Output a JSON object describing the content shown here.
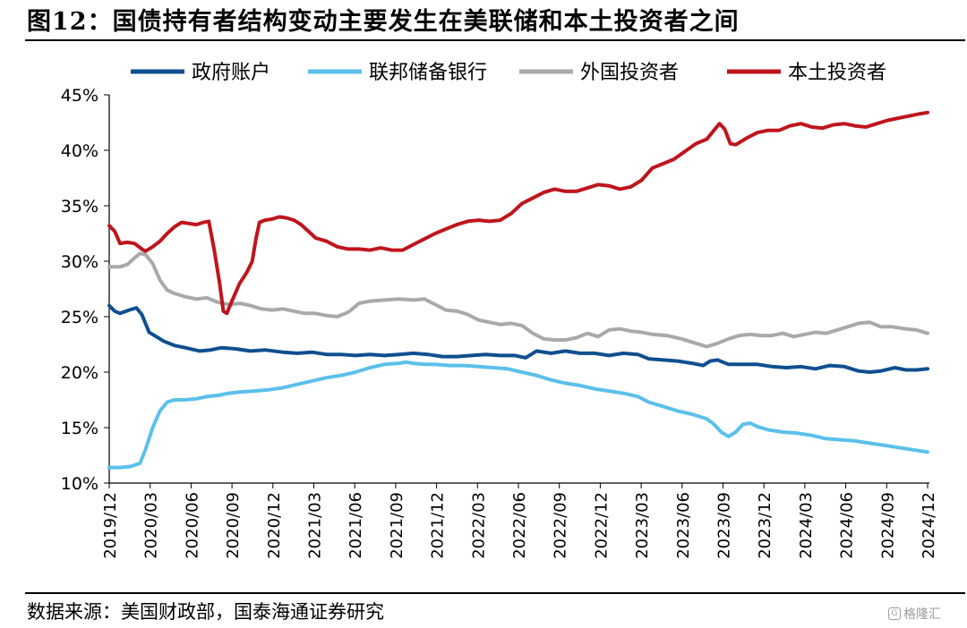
{
  "figure": {
    "title": "图12：国债持有者结构变动主要发生在美联储和本土投资者之间",
    "source": "数据来源：美国财政部，国泰海通证券研究",
    "watermark": "格隆汇"
  },
  "chart_data": {
    "type": "line",
    "ylim": [
      10,
      45
    ],
    "y_ticks": [
      "10%",
      "15%",
      "20%",
      "25%",
      "30%",
      "35%",
      "40%",
      "45%"
    ],
    "x_tick_labels": [
      "2019/12",
      "2020/03",
      "2020/06",
      "2020/09",
      "2020/12",
      "2021/03",
      "2021/06",
      "2021/09",
      "2021/12",
      "2022/03",
      "2022/06",
      "2022/09",
      "2022/12",
      "2023/03",
      "2023/06",
      "2023/09",
      "2023/12",
      "2024/03",
      "2024/06",
      "2024/09",
      "2024/12"
    ],
    "legend_position": "top",
    "grid": false,
    "series": [
      {
        "name": "政府账户",
        "color": "#0f4f8f",
        "points": [
          [
            0,
            26.0
          ],
          [
            0.15,
            25.5
          ],
          [
            0.3,
            25.3
          ],
          [
            0.55,
            25.6
          ],
          [
            0.75,
            25.8
          ],
          [
            0.9,
            25.2
          ],
          [
            1.1,
            23.6
          ],
          [
            1.3,
            23.2
          ],
          [
            1.5,
            22.8
          ],
          [
            1.8,
            22.4
          ],
          [
            2.1,
            22.2
          ],
          [
            2.5,
            21.9
          ],
          [
            2.8,
            22.0
          ],
          [
            3.1,
            22.2
          ],
          [
            3.5,
            22.1
          ],
          [
            3.9,
            21.9
          ],
          [
            4.3,
            22.0
          ],
          [
            4.8,
            21.8
          ],
          [
            5.2,
            21.7
          ],
          [
            5.6,
            21.8
          ],
          [
            6.0,
            21.6
          ],
          [
            6.4,
            21.6
          ],
          [
            6.8,
            21.5
          ],
          [
            7.2,
            21.6
          ],
          [
            7.6,
            21.5
          ],
          [
            8.0,
            21.6
          ],
          [
            8.4,
            21.7
          ],
          [
            8.8,
            21.6
          ],
          [
            9.2,
            21.4
          ],
          [
            9.6,
            21.4
          ],
          [
            10.0,
            21.5
          ],
          [
            10.4,
            21.6
          ],
          [
            10.8,
            21.5
          ],
          [
            11.2,
            21.5
          ],
          [
            11.5,
            21.3
          ],
          [
            11.8,
            21.9
          ],
          [
            12.2,
            21.7
          ],
          [
            12.6,
            21.9
          ],
          [
            13.0,
            21.7
          ],
          [
            13.4,
            21.7
          ],
          [
            13.8,
            21.5
          ],
          [
            14.2,
            21.7
          ],
          [
            14.6,
            21.6
          ],
          [
            14.9,
            21.2
          ],
          [
            15.3,
            21.1
          ],
          [
            15.7,
            21.0
          ],
          [
            16.1,
            20.8
          ],
          [
            16.4,
            20.6
          ],
          [
            16.6,
            21.0
          ],
          [
            16.8,
            21.1
          ],
          [
            17.1,
            20.7
          ],
          [
            17.5,
            20.7
          ],
          [
            17.9,
            20.7
          ],
          [
            18.3,
            20.5
          ],
          [
            18.7,
            20.4
          ],
          [
            19.1,
            20.5
          ],
          [
            19.5,
            20.3
          ],
          [
            19.9,
            20.6
          ],
          [
            20.3,
            20.5
          ],
          [
            20.7,
            20.1
          ],
          [
            21.0,
            20.0
          ],
          [
            21.3,
            20.1
          ],
          [
            21.7,
            20.4
          ],
          [
            22.0,
            20.2
          ],
          [
            22.3,
            20.2
          ],
          [
            22.6,
            20.3
          ]
        ]
      },
      {
        "name": "联邦储备银行",
        "color": "#5bc0eb",
        "points": [
          [
            0,
            11.4
          ],
          [
            0.3,
            11.4
          ],
          [
            0.6,
            11.5
          ],
          [
            0.85,
            11.8
          ],
          [
            1.0,
            13.0
          ],
          [
            1.2,
            15.0
          ],
          [
            1.4,
            16.5
          ],
          [
            1.6,
            17.3
          ],
          [
            1.8,
            17.5
          ],
          [
            2.1,
            17.5
          ],
          [
            2.4,
            17.6
          ],
          [
            2.7,
            17.8
          ],
          [
            3.0,
            17.9
          ],
          [
            3.3,
            18.1
          ],
          [
            3.6,
            18.2
          ],
          [
            4.0,
            18.3
          ],
          [
            4.4,
            18.4
          ],
          [
            4.8,
            18.6
          ],
          [
            5.2,
            18.9
          ],
          [
            5.6,
            19.2
          ],
          [
            6.0,
            19.5
          ],
          [
            6.4,
            19.7
          ],
          [
            6.8,
            20.0
          ],
          [
            7.2,
            20.4
          ],
          [
            7.6,
            20.7
          ],
          [
            8.0,
            20.8
          ],
          [
            8.2,
            20.9
          ],
          [
            8.4,
            20.8
          ],
          [
            8.7,
            20.7
          ],
          [
            9.0,
            20.7
          ],
          [
            9.4,
            20.6
          ],
          [
            9.8,
            20.6
          ],
          [
            10.2,
            20.5
          ],
          [
            10.6,
            20.4
          ],
          [
            11.0,
            20.3
          ],
          [
            11.4,
            20.0
          ],
          [
            11.8,
            19.7
          ],
          [
            12.2,
            19.3
          ],
          [
            12.6,
            19.0
          ],
          [
            13.0,
            18.8
          ],
          [
            13.4,
            18.5
          ],
          [
            13.8,
            18.3
          ],
          [
            14.2,
            18.1
          ],
          [
            14.6,
            17.8
          ],
          [
            14.9,
            17.3
          ],
          [
            15.3,
            16.9
          ],
          [
            15.7,
            16.5
          ],
          [
            16.1,
            16.2
          ],
          [
            16.5,
            15.8
          ],
          [
            16.7,
            15.3
          ],
          [
            16.9,
            14.6
          ],
          [
            17.1,
            14.2
          ],
          [
            17.3,
            14.6
          ],
          [
            17.5,
            15.3
          ],
          [
            17.7,
            15.4
          ],
          [
            17.9,
            15.1
          ],
          [
            18.2,
            14.8
          ],
          [
            18.6,
            14.6
          ],
          [
            19.0,
            14.5
          ],
          [
            19.4,
            14.3
          ],
          [
            19.8,
            14.0
          ],
          [
            20.2,
            13.9
          ],
          [
            20.6,
            13.8
          ],
          [
            21.0,
            13.6
          ],
          [
            21.4,
            13.4
          ],
          [
            21.8,
            13.2
          ],
          [
            22.2,
            13.0
          ],
          [
            22.6,
            12.8
          ]
        ]
      },
      {
        "name": "外国投资者",
        "color": "#a9a9a9",
        "points": [
          [
            0,
            29.5
          ],
          [
            0.3,
            29.5
          ],
          [
            0.5,
            29.7
          ],
          [
            0.7,
            30.3
          ],
          [
            0.85,
            30.7
          ],
          [
            1.0,
            30.6
          ],
          [
            1.2,
            29.8
          ],
          [
            1.4,
            28.3
          ],
          [
            1.6,
            27.4
          ],
          [
            1.8,
            27.1
          ],
          [
            2.1,
            26.8
          ],
          [
            2.4,
            26.6
          ],
          [
            2.7,
            26.7
          ],
          [
            3.0,
            26.3
          ],
          [
            3.3,
            26.1
          ],
          [
            3.6,
            26.2
          ],
          [
            3.9,
            26.0
          ],
          [
            4.2,
            25.7
          ],
          [
            4.5,
            25.6
          ],
          [
            4.8,
            25.7
          ],
          [
            5.1,
            25.5
          ],
          [
            5.4,
            25.3
          ],
          [
            5.7,
            25.3
          ],
          [
            6.0,
            25.1
          ],
          [
            6.3,
            25.0
          ],
          [
            6.6,
            25.4
          ],
          [
            6.9,
            26.2
          ],
          [
            7.2,
            26.4
          ],
          [
            7.6,
            26.5
          ],
          [
            8.0,
            26.6
          ],
          [
            8.4,
            26.5
          ],
          [
            8.7,
            26.6
          ],
          [
            9.0,
            26.1
          ],
          [
            9.3,
            25.6
          ],
          [
            9.6,
            25.5
          ],
          [
            9.9,
            25.2
          ],
          [
            10.2,
            24.7
          ],
          [
            10.5,
            24.5
          ],
          [
            10.8,
            24.3
          ],
          [
            11.1,
            24.4
          ],
          [
            11.4,
            24.2
          ],
          [
            11.7,
            23.5
          ],
          [
            12.0,
            23.0
          ],
          [
            12.3,
            22.9
          ],
          [
            12.6,
            22.9
          ],
          [
            12.9,
            23.1
          ],
          [
            13.2,
            23.5
          ],
          [
            13.5,
            23.2
          ],
          [
            13.8,
            23.8
          ],
          [
            14.1,
            23.9
          ],
          [
            14.4,
            23.7
          ],
          [
            14.7,
            23.6
          ],
          [
            15.0,
            23.4
          ],
          [
            15.4,
            23.3
          ],
          [
            15.8,
            23.0
          ],
          [
            16.2,
            22.6
          ],
          [
            16.5,
            22.3
          ],
          [
            16.8,
            22.6
          ],
          [
            17.1,
            23.0
          ],
          [
            17.4,
            23.3
          ],
          [
            17.7,
            23.4
          ],
          [
            18.0,
            23.3
          ],
          [
            18.3,
            23.3
          ],
          [
            18.6,
            23.5
          ],
          [
            18.9,
            23.2
          ],
          [
            19.2,
            23.4
          ],
          [
            19.5,
            23.6
          ],
          [
            19.8,
            23.5
          ],
          [
            20.1,
            23.8
          ],
          [
            20.4,
            24.1
          ],
          [
            20.7,
            24.4
          ],
          [
            21.0,
            24.5
          ],
          [
            21.3,
            24.1
          ],
          [
            21.6,
            24.1
          ],
          [
            22.0,
            23.9
          ],
          [
            22.3,
            23.8
          ],
          [
            22.6,
            23.5
          ]
        ]
      },
      {
        "name": "本土投资者",
        "color": "#c0141c",
        "points": [
          [
            0,
            33.2
          ],
          [
            0.15,
            32.7
          ],
          [
            0.3,
            31.6
          ],
          [
            0.5,
            31.7
          ],
          [
            0.7,
            31.6
          ],
          [
            0.9,
            31.1
          ],
          [
            1.0,
            30.9
          ],
          [
            1.2,
            31.3
          ],
          [
            1.4,
            31.8
          ],
          [
            1.6,
            32.5
          ],
          [
            1.8,
            33.1
          ],
          [
            2.0,
            33.5
          ],
          [
            2.2,
            33.4
          ],
          [
            2.4,
            33.3
          ],
          [
            2.6,
            33.5
          ],
          [
            2.75,
            33.6
          ],
          [
            2.9,
            31.0
          ],
          [
            3.05,
            28.0
          ],
          [
            3.15,
            25.5
          ],
          [
            3.25,
            25.3
          ],
          [
            3.4,
            26.5
          ],
          [
            3.6,
            28.0
          ],
          [
            3.8,
            29.0
          ],
          [
            3.95,
            30.0
          ],
          [
            4.05,
            32.0
          ],
          [
            4.15,
            33.5
          ],
          [
            4.3,
            33.7
          ],
          [
            4.5,
            33.8
          ],
          [
            4.7,
            34.0
          ],
          [
            4.9,
            33.9
          ],
          [
            5.1,
            33.7
          ],
          [
            5.3,
            33.3
          ],
          [
            5.5,
            32.7
          ],
          [
            5.7,
            32.1
          ],
          [
            6.0,
            31.8
          ],
          [
            6.3,
            31.3
          ],
          [
            6.6,
            31.1
          ],
          [
            6.9,
            31.1
          ],
          [
            7.2,
            31.0
          ],
          [
            7.5,
            31.2
          ],
          [
            7.8,
            31.0
          ],
          [
            8.1,
            31.0
          ],
          [
            8.4,
            31.5
          ],
          [
            8.7,
            32.0
          ],
          [
            9.0,
            32.5
          ],
          [
            9.3,
            32.9
          ],
          [
            9.6,
            33.3
          ],
          [
            9.9,
            33.6
          ],
          [
            10.2,
            33.7
          ],
          [
            10.5,
            33.6
          ],
          [
            10.8,
            33.7
          ],
          [
            11.1,
            34.3
          ],
          [
            11.4,
            35.2
          ],
          [
            11.7,
            35.7
          ],
          [
            12.0,
            36.2
          ],
          [
            12.3,
            36.5
          ],
          [
            12.6,
            36.3
          ],
          [
            12.9,
            36.3
          ],
          [
            13.2,
            36.6
          ],
          [
            13.5,
            36.9
          ],
          [
            13.8,
            36.8
          ],
          [
            14.1,
            36.5
          ],
          [
            14.4,
            36.7
          ],
          [
            14.7,
            37.3
          ],
          [
            15.0,
            38.4
          ],
          [
            15.3,
            38.8
          ],
          [
            15.6,
            39.2
          ],
          [
            15.9,
            39.9
          ],
          [
            16.2,
            40.6
          ],
          [
            16.5,
            41.0
          ],
          [
            16.7,
            41.8
          ],
          [
            16.85,
            42.4
          ],
          [
            17.0,
            41.9
          ],
          [
            17.15,
            40.6
          ],
          [
            17.3,
            40.5
          ],
          [
            17.6,
            41.1
          ],
          [
            17.9,
            41.6
          ],
          [
            18.2,
            41.8
          ],
          [
            18.5,
            41.8
          ],
          [
            18.8,
            42.2
          ],
          [
            19.1,
            42.4
          ],
          [
            19.4,
            42.1
          ],
          [
            19.7,
            42.0
          ],
          [
            20.0,
            42.3
          ],
          [
            20.3,
            42.4
          ],
          [
            20.6,
            42.2
          ],
          [
            20.9,
            42.1
          ],
          [
            21.2,
            42.4
          ],
          [
            21.5,
            42.7
          ],
          [
            21.8,
            42.9
          ],
          [
            22.1,
            43.1
          ],
          [
            22.4,
            43.3
          ],
          [
            22.6,
            43.4
          ]
        ]
      }
    ]
  }
}
